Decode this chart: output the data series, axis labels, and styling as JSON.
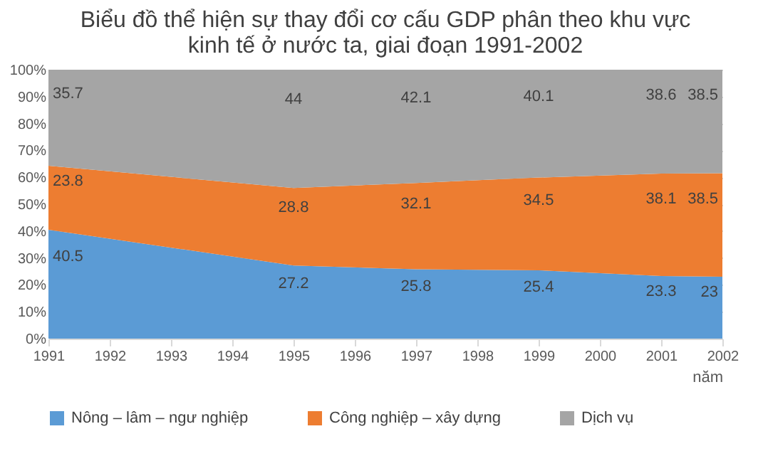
{
  "chart_data": {
    "type": "area",
    "title": "Biểu đồ thể hiện sự thay đổi cơ cấu GDP phân theo khu vực kinh tế ở nước ta, giai đoạn 1991-2002",
    "xlabel": "năm",
    "x": [
      1991,
      1995,
      1997,
      1999,
      2001,
      2002
    ],
    "stacked": true,
    "series": [
      {
        "name": "Nông – lâm – ngư nghiệp",
        "color": "#5b9bd5",
        "values": [
          40.5,
          27.2,
          25.8,
          25.4,
          23.3,
          23
        ]
      },
      {
        "name": "Công nghiệp – xây dựng",
        "color": "#ed7d31",
        "values": [
          23.8,
          28.8,
          32.1,
          34.5,
          38.1,
          38.5
        ]
      },
      {
        "name": "Dịch vụ",
        "color": "#a5a5a5",
        "values": [
          35.7,
          44,
          42.1,
          40.1,
          38.6,
          38.5
        ]
      }
    ],
    "xlim": [
      1991,
      2002
    ],
    "xticks": [
      1991,
      1992,
      1993,
      1994,
      1995,
      1996,
      1997,
      1998,
      1999,
      2000,
      2001,
      2002
    ],
    "ylim": [
      0,
      100
    ],
    "yticks": [
      {
        "value": 0,
        "label": "0%"
      },
      {
        "value": 10,
        "label": "10%"
      },
      {
        "value": 20,
        "label": "20%"
      },
      {
        "value": 30,
        "label": "30%"
      },
      {
        "value": 40,
        "label": "40%"
      },
      {
        "value": 50,
        "label": "50%"
      },
      {
        "value": 60,
        "label": "60%"
      },
      {
        "value": 70,
        "label": "70%"
      },
      {
        "value": 80,
        "label": "80%"
      },
      {
        "value": 90,
        "label": "90%"
      },
      {
        "value": 100,
        "label": "100%"
      }
    ],
    "grid": "y",
    "legend": "bottom",
    "data_labels": true
  }
}
